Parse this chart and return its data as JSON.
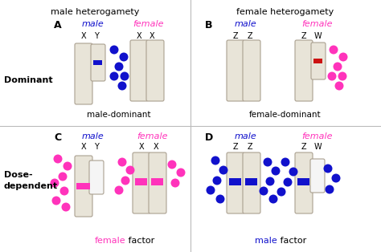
{
  "title_left": "male heterogamety",
  "title_right": "female heterogamety",
  "bg_color": "#ffffff",
  "chrom_color": "#e8e4d8",
  "chrom_edge": "#aaa090",
  "blue": "#1111cc",
  "pink": "#ff33bb",
  "red": "#cc1111",
  "dominant_label": "Dominant",
  "dose_label_1": "Dose-",
  "dose_label_2": "dependent"
}
